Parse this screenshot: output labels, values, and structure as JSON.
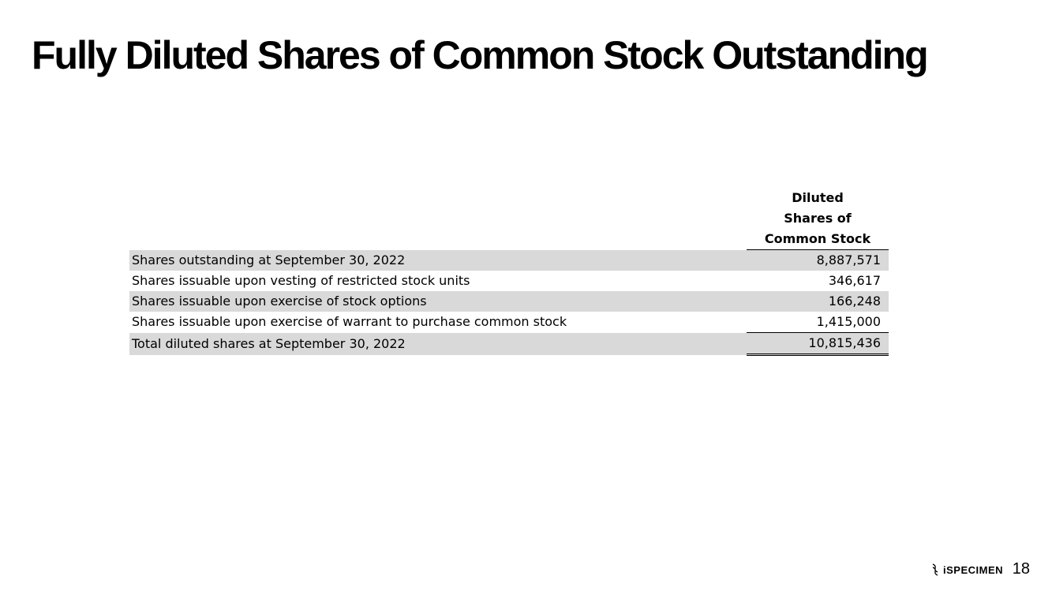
{
  "slide": {
    "title": "Fully Diluted Shares of Common Stock Outstanding",
    "page_number": "18"
  },
  "table": {
    "column_header": "Diluted\nShares of\nCommon Stock",
    "rows": [
      {
        "label": "Shares outstanding at September 30, 2022",
        "value": "8,887,571"
      },
      {
        "label": "Shares issuable upon vesting of restricted stock units",
        "value": "346,617"
      },
      {
        "label": "Shares issuable upon exercise of stock options",
        "value": "166,248"
      },
      {
        "label": "Shares issuable upon exercise of warrant to purchase common stock",
        "value": "1,415,000"
      },
      {
        "label": "Total diluted shares at September 30, 2022",
        "value": "10,815,436"
      }
    ]
  },
  "footer": {
    "logo_text": "iSPECIMEN",
    "logo_icon": "dna-helix-icon"
  },
  "colors": {
    "row_shading": "#d9d9d9",
    "text": "#000000",
    "background": "#ffffff"
  }
}
